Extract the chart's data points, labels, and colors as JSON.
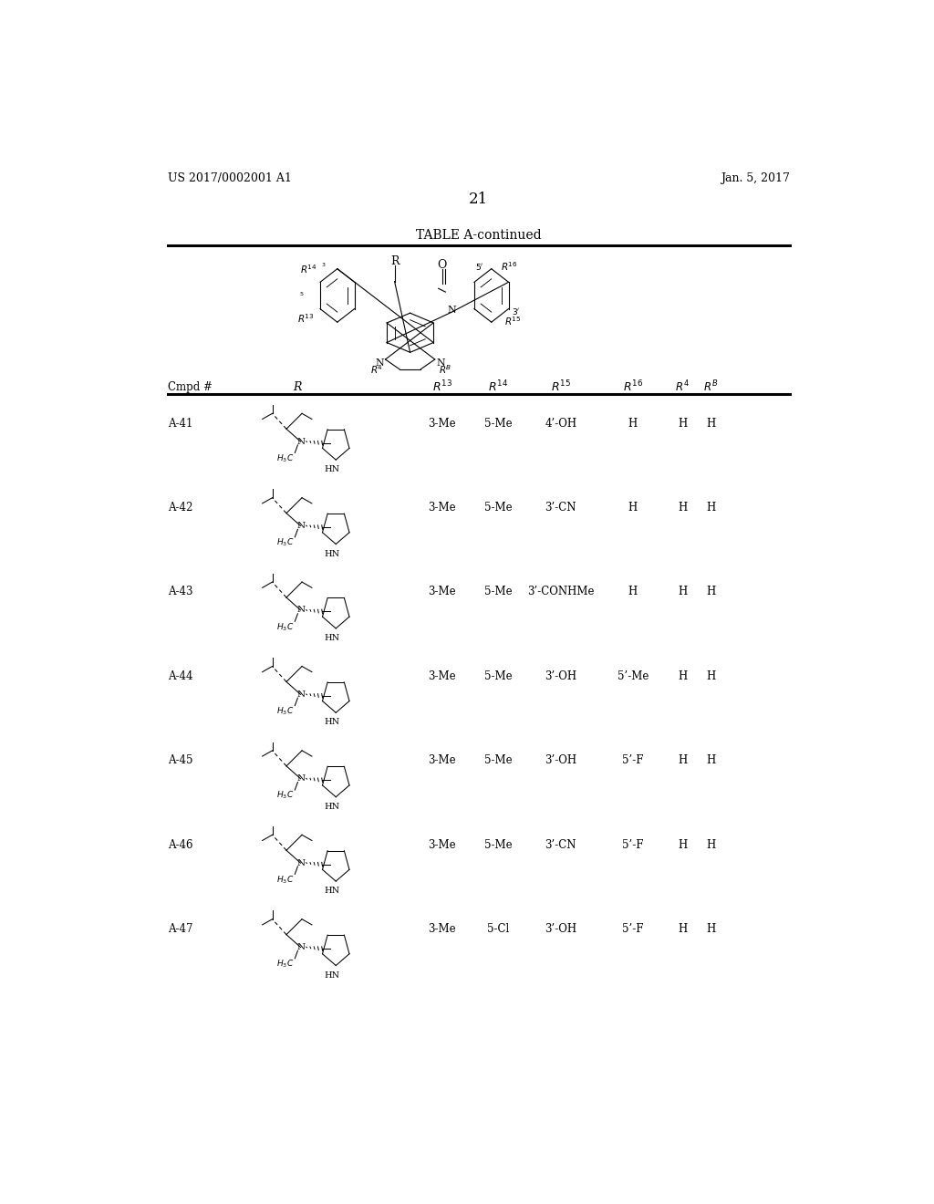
{
  "page_number": "21",
  "patent_left": "US 2017/0002001 A1",
  "patent_right": "Jan. 5, 2017",
  "table_title": "TABLE A-continued",
  "background_color": "#ffffff",
  "text_color": "#000000",
  "rows": [
    {
      "cmpd": "A-41",
      "R13": "3-Me",
      "R14": "5-Me",
      "R15": "4’-OH",
      "R16": "H",
      "RA": "H",
      "RB": "H"
    },
    {
      "cmpd": "A-42",
      "R13": "3-Me",
      "R14": "5-Me",
      "R15": "3’-CN",
      "R16": "H",
      "RA": "H",
      "RB": "H"
    },
    {
      "cmpd": "A-43",
      "R13": "3-Me",
      "R14": "5-Me",
      "R15": "3’-CONHMe",
      "R16": "H",
      "RA": "H",
      "RB": "H"
    },
    {
      "cmpd": "A-44",
      "R13": "3-Me",
      "R14": "5-Me",
      "R15": "3’-OH",
      "R16": "5’-Me",
      "RA": "H",
      "RB": "H"
    },
    {
      "cmpd": "A-45",
      "R13": "3-Me",
      "R14": "5-Me",
      "R15": "3’-OH",
      "R16": "5’-F",
      "RA": "H",
      "RB": "H"
    },
    {
      "cmpd": "A-46",
      "R13": "3-Me",
      "R14": "5-Me",
      "R15": "3’-CN",
      "R16": "5’-F",
      "RA": "H",
      "RB": "H"
    },
    {
      "cmpd": "A-47",
      "R13": "3-Me",
      "R14": "5-Cl",
      "R15": "3’-OH",
      "R16": "5’-F",
      "RA": "H",
      "RB": "H"
    }
  ]
}
